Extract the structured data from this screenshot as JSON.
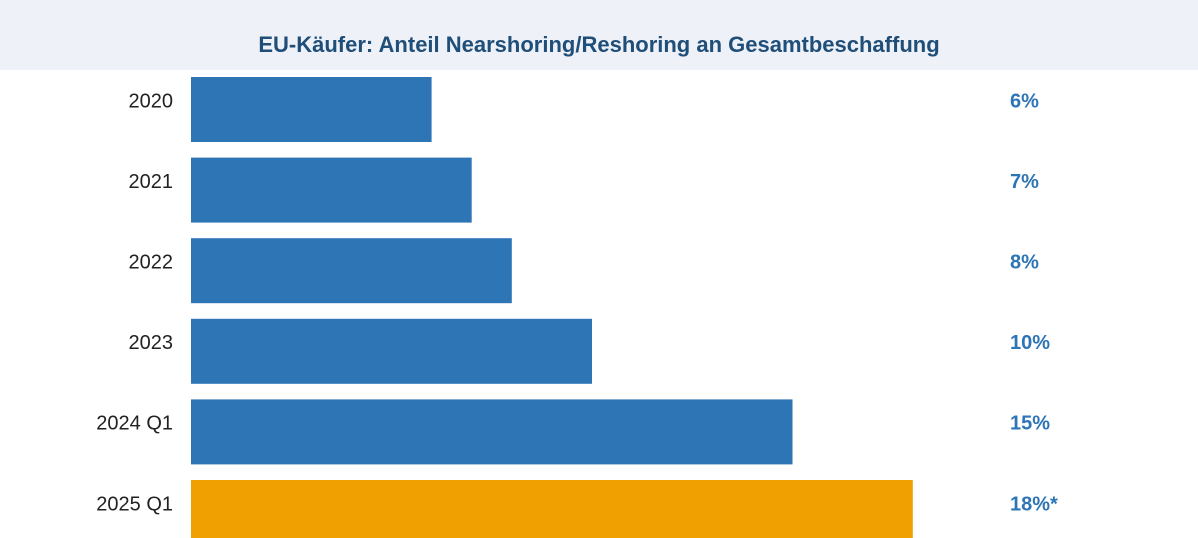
{
  "chart_data": {
    "type": "bar",
    "orientation": "horizontal",
    "title": "EU-Käufer: Anteil Nearshoring/Reshoring an Gesamtbeschaffung",
    "categories": [
      "2020",
      "2021",
      "2022",
      "2023",
      "2024 Q1",
      "2025 Q1"
    ],
    "values": [
      6,
      7,
      8,
      10,
      15,
      18
    ],
    "value_labels": [
      "6%",
      "7%",
      "8%",
      "10%",
      "15%",
      "18%*"
    ],
    "unit": "%",
    "xlim": [
      0,
      20
    ],
    "grid": false,
    "legend": "none",
    "colors": {
      "default_bar": "#2e75b6",
      "highlight_bar": "#f0a000",
      "value_label": "#2e75b6",
      "title": "#1f4e79",
      "title_background": "#eef1f7",
      "category_label": "#222222"
    },
    "highlight_index": 5
  }
}
